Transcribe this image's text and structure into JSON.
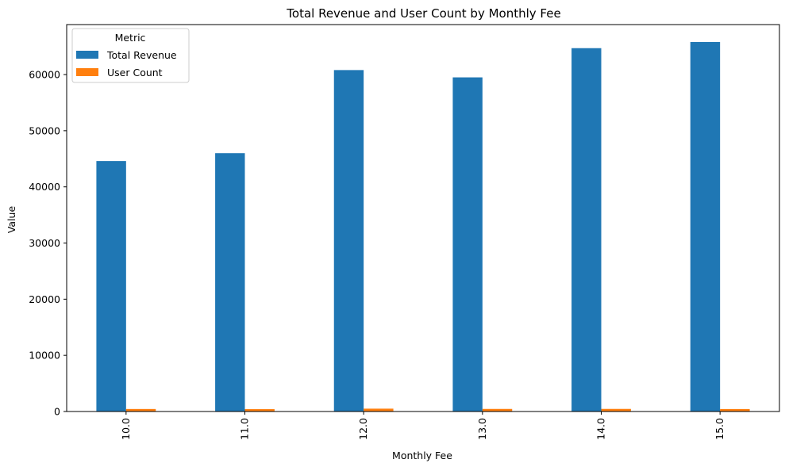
{
  "chart_data": {
    "type": "bar",
    "title": "Total Revenue and User Count by Monthly Fee",
    "xlabel": "Monthly Fee",
    "ylabel": "Value",
    "categories": [
      "10.0",
      "11.0",
      "12.0",
      "13.0",
      "14.0",
      "15.0"
    ],
    "series": [
      {
        "name": "Total Revenue",
        "color": "#1f77b4",
        "values": [
          44600,
          46000,
          60800,
          59500,
          64700,
          65800
        ]
      },
      {
        "name": "User Count",
        "color": "#ff7f0e",
        "values": [
          446,
          418,
          507,
          458,
          462,
          439
        ]
      }
    ],
    "ylim": [
      0,
      68900
    ],
    "yticks": [
      0,
      10000,
      20000,
      30000,
      40000,
      50000,
      60000
    ],
    "legend": {
      "title": "Metric",
      "position": "top-left"
    },
    "grid": false
  }
}
